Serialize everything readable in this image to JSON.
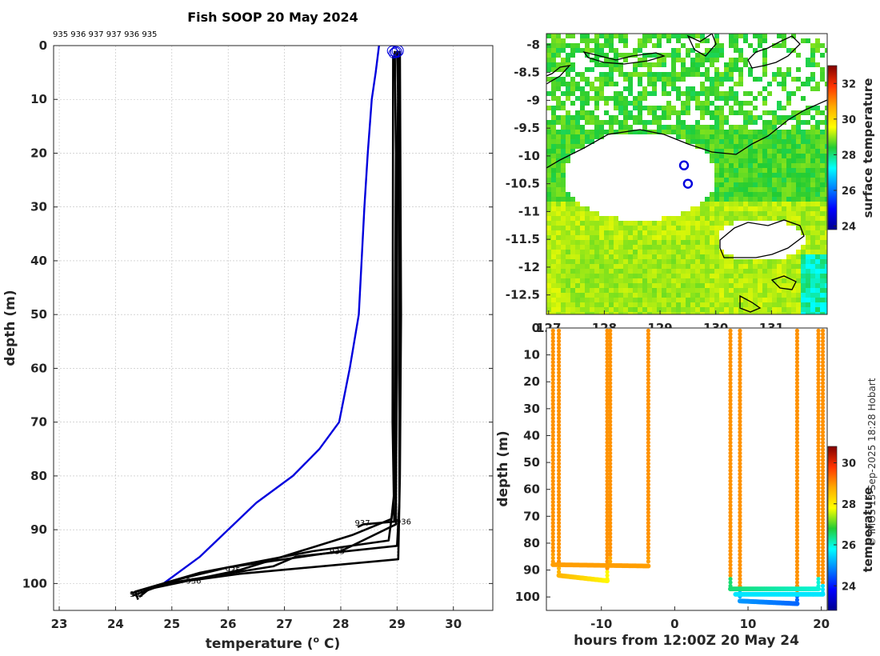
{
  "chart_data": [
    {
      "type": "line",
      "title": "Fish SOOP 20 May 2024",
      "xlabel": "temperature (",
      "xlabel_sup": "o",
      "xlabel_unit": " C)",
      "ylabel": "depth (m)",
      "xlim": [
        22.9,
        30.7
      ],
      "ylim": [
        105,
        0
      ],
      "xticks": [
        23,
        24,
        25,
        26,
        27,
        28,
        29,
        30
      ],
      "yticks": [
        0,
        10,
        20,
        30,
        40,
        50,
        60,
        70,
        80,
        90,
        100
      ],
      "header_ids": "935 936 937 937 936 935",
      "series": [
        {
          "name": "climatology",
          "color": "#0000dd",
          "points": [
            [
              28.68,
              0
            ],
            [
              28.62,
              5
            ],
            [
              28.55,
              10
            ],
            [
              28.48,
              20
            ],
            [
              28.42,
              30
            ],
            [
              28.37,
              40
            ],
            [
              28.32,
              50
            ],
            [
              28.16,
              60
            ],
            [
              27.97,
              70
            ],
            [
              27.62,
              75
            ],
            [
              27.15,
              80
            ],
            [
              26.5,
              85
            ],
            [
              26.0,
              90
            ],
            [
              25.5,
              95
            ],
            [
              24.85,
              100
            ]
          ]
        },
        {
          "name": "profile-935",
          "color": "#000000",
          "points": [
            [
              29.0,
              1
            ],
            [
              29.02,
              10
            ],
            [
              29.0,
              30
            ],
            [
              29.0,
              60
            ],
            [
              28.98,
              80
            ],
            [
              28.9,
              88
            ],
            [
              28.2,
              91
            ],
            [
              26.2,
              97.5
            ],
            [
              24.6,
              101
            ],
            [
              24.42,
              102.5
            ]
          ]
        },
        {
          "name": "profile-936",
          "color": "#000000",
          "points": [
            [
              28.96,
              1
            ],
            [
              28.98,
              20
            ],
            [
              28.96,
              60
            ],
            [
              28.95,
              84
            ],
            [
              28.85,
              92
            ],
            [
              27.5,
              94
            ],
            [
              25.5,
              98
            ],
            [
              24.35,
              101.5
            ],
            [
              24.4,
              103
            ]
          ]
        },
        {
          "name": "profile-937",
          "color": "#000000",
          "points": [
            [
              29.04,
              1
            ],
            [
              29.04,
              50
            ],
            [
              29.04,
              85
            ],
            [
              29.0,
              93
            ],
            [
              27.2,
              95
            ],
            [
              26.8,
              96.8
            ],
            [
              24.9,
              100
            ],
            [
              24.3,
              102.3
            ]
          ]
        },
        {
          "name": "profile-937b",
          "color": "#000000",
          "points": [
            [
              29.02,
              2
            ],
            [
              29.0,
              40
            ],
            [
              28.98,
              89
            ],
            [
              28.0,
              94
            ],
            [
              26.0,
              97
            ],
            [
              25.2,
              99
            ],
            [
              24.28,
              101.8
            ]
          ]
        },
        {
          "name": "profile-936b",
          "color": "#000000",
          "points": [
            [
              28.93,
              2
            ],
            [
              28.92,
              70
            ],
            [
              28.95,
              88.5
            ],
            [
              28.4,
              89
            ],
            [
              28.3,
              89.5
            ]
          ]
        },
        {
          "name": "profile-935b",
          "color": "#000000",
          "points": [
            [
              29.05,
              1
            ],
            [
              29.07,
              50
            ],
            [
              29.05,
              80
            ],
            [
              29.02,
              95.5
            ],
            [
              26.2,
              98.2
            ],
            [
              25.3,
              99.5
            ]
          ]
        }
      ],
      "annotations": [
        {
          "text": "936",
          "x": 28.98,
          "y": 89
        },
        {
          "text": "937",
          "x": 28.25,
          "y": 89.2
        },
        {
          "text": "935",
          "x": 27.8,
          "y": 94.5
        },
        {
          "text": "935",
          "x": 25.95,
          "y": 98
        },
        {
          "text": "936",
          "x": 25.25,
          "y": 100
        },
        {
          "text": "937",
          "x": 24.25,
          "y": 102.5
        }
      ],
      "surface_markers": {
        "x": 28.97,
        "y": 1.2,
        "count": 5
      }
    },
    {
      "type": "heatmap",
      "colorbar_label": "surface temperature",
      "colorbar_ticks": [
        24,
        26,
        28,
        30,
        32
      ],
      "colorbar_range": [
        23.8,
        33.0
      ],
      "xticks": [
        "127",
        "128",
        "129",
        "130",
        "131"
      ],
      "xrange": [
        126.96,
        132.0
      ],
      "yticks": [
        "-8",
        "-8.5",
        "-9",
        "-9.5",
        "-10",
        "-10.5",
        "-11",
        "-11.5",
        "-12",
        "-12.5"
      ],
      "yrange": [
        -7.8,
        -12.85
      ],
      "stations": [
        [
          129.43,
          -10.17
        ],
        [
          129.5,
          -10.5
        ]
      ]
    },
    {
      "type": "scatter",
      "xlabel": "hours from 12:00Z 20 May 24",
      "ylabel": "depth (m)",
      "colorbar_label": "temperature",
      "colorbar_ticks": [
        24,
        26,
        28,
        30
      ],
      "colorbar_range": [
        22.8,
        30.8
      ],
      "xlim": [
        -17.5,
        20.8
      ],
      "ylim": [
        105,
        0
      ],
      "xticks": [
        -10,
        0,
        10,
        20
      ],
      "yticks": [
        0,
        10,
        20,
        30,
        40,
        50,
        60,
        70,
        80,
        90,
        100
      ],
      "casts": [
        {
          "x": -16.6,
          "maxd": 88,
          "bottom_temp": 28.9
        },
        {
          "x": -15.8,
          "maxd": 92,
          "bottom_temp": 28.7
        },
        {
          "x": -9.2,
          "maxd": 94,
          "bottom_temp": 27.9
        },
        {
          "x": -8.8,
          "maxd": 89,
          "bottom_temp": 28.8
        },
        {
          "x": -3.6,
          "maxd": 88,
          "bottom_temp": 28.9
        },
        {
          "x": 7.6,
          "maxd": 97,
          "bottom_temp": 26.5
        },
        {
          "x": 8.9,
          "maxd": 101,
          "bottom_temp": 25.2
        },
        {
          "x": 16.7,
          "maxd": 102.5,
          "bottom_temp": 24.6
        },
        {
          "x": 19.6,
          "maxd": 97,
          "bottom_temp": 26.0
        },
        {
          "x": 20.2,
          "maxd": 99,
          "bottom_temp": 25.6
        }
      ],
      "tows": [
        {
          "x0": -16.6,
          "x1": -3.6,
          "d0": 88,
          "d1": 88.5,
          "t0": 28.9,
          "t1": 28.9
        },
        {
          "x0": -15.8,
          "x1": -9.2,
          "d0": 92,
          "d1": 94,
          "t0": 28.7,
          "t1": 27.9
        },
        {
          "x0": 7.6,
          "x1": 19.6,
          "d0": 97,
          "d1": 97,
          "t0": 26.5,
          "t1": 26.0
        },
        {
          "x0": 8.3,
          "x1": 20.2,
          "d0": 99,
          "d1": 99,
          "t0": 25.6,
          "t1": 25.6
        },
        {
          "x0": 8.9,
          "x1": 16.7,
          "d0": 101.5,
          "d1": 102.5,
          "t0": 25.0,
          "t1": 24.6
        }
      ]
    }
  ],
  "credit": "© IMOS 13-Sep-2025 18:28 Hobart"
}
